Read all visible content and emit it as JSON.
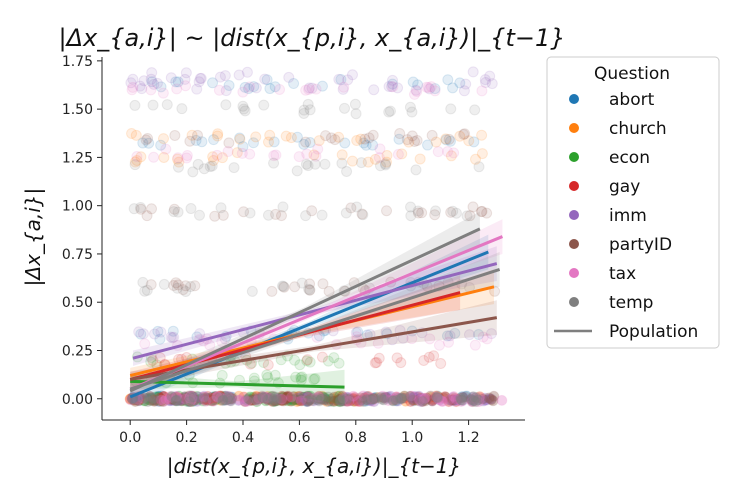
{
  "chart_data": {
    "type": "scatter",
    "title": "|Δx_{a,i}| ~ |dist(x_{p,i}, x_{a,i})|_{t−1}",
    "xlabel": "|dist(x_{p,i}, x_{a,i})|_{t−1}",
    "ylabel": "|Δx_{a,i}|",
    "xlim": [
      -0.1,
      1.4
    ],
    "ylim": [
      -0.11,
      1.77
    ],
    "x_ticks": [
      "0.0",
      "0.2",
      "0.4",
      "0.6",
      "0.8",
      "1.0",
      "1.2"
    ],
    "y_ticks": [
      "0.00",
      "0.25",
      "0.50",
      "0.75",
      "1.00",
      "1.25",
      "1.50",
      "1.75"
    ],
    "legend_title": "Question",
    "legend_position": "outside-right",
    "series": [
      {
        "name": "abort",
        "color": "#1f77b4",
        "fit_x": [
          0.0,
          1.27
        ],
        "fit_y": [
          0.01,
          0.76
        ],
        "point_levels": [
          0.0,
          0.33,
          1.33,
          1.63
        ]
      },
      {
        "name": "church",
        "color": "#ff7f0e",
        "fit_x": [
          0.0,
          1.29
        ],
        "fit_y": [
          0.12,
          0.58
        ],
        "point_levels": [
          0.0,
          1.35,
          1.25
        ]
      },
      {
        "name": "econ",
        "color": "#2ca02c",
        "fit_x": [
          0.0,
          0.76
        ],
        "fit_y": [
          0.09,
          0.06
        ],
        "point_levels": [
          0.0,
          0.1,
          0.2
        ]
      },
      {
        "name": "gay",
        "color": "#d62728",
        "fit_x": [
          0.0,
          1.17
        ],
        "fit_y": [
          0.1,
          0.55
        ],
        "point_levels": [
          0.0,
          0.2
        ]
      },
      {
        "name": "imm",
        "color": "#9467bd",
        "fit_x": [
          0.01,
          1.3
        ],
        "fit_y": [
          0.21,
          0.7
        ],
        "point_levels": [
          0.0,
          0.33,
          1.67,
          1.62
        ]
      },
      {
        "name": "partyID",
        "color": "#8c564b",
        "fit_x": [
          0.0,
          1.3
        ],
        "fit_y": [
          0.1,
          0.42
        ],
        "point_levels": [
          0.0,
          0.58,
          0.97,
          1.35
        ]
      },
      {
        "name": "tax",
        "color": "#e377c2",
        "fit_x": [
          0.0,
          1.32
        ],
        "fit_y": [
          0.05,
          0.84
        ],
        "point_levels": [
          0.0,
          0.3,
          1.27,
          1.6
        ]
      },
      {
        "name": "temp",
        "color": "#7f7f7f",
        "fit_x": [
          0.0,
          1.24
        ],
        "fit_y": [
          0.04,
          0.88
        ],
        "point_levels": [
          0.0,
          0.58,
          0.97,
          1.2,
          1.5
        ]
      },
      {
        "name": "Population",
        "color": "#7f7f7f",
        "fit_x": [
          0.0,
          1.31
        ],
        "fit_y": [
          0.05,
          0.67
        ],
        "legend_marker": "line"
      }
    ]
  }
}
